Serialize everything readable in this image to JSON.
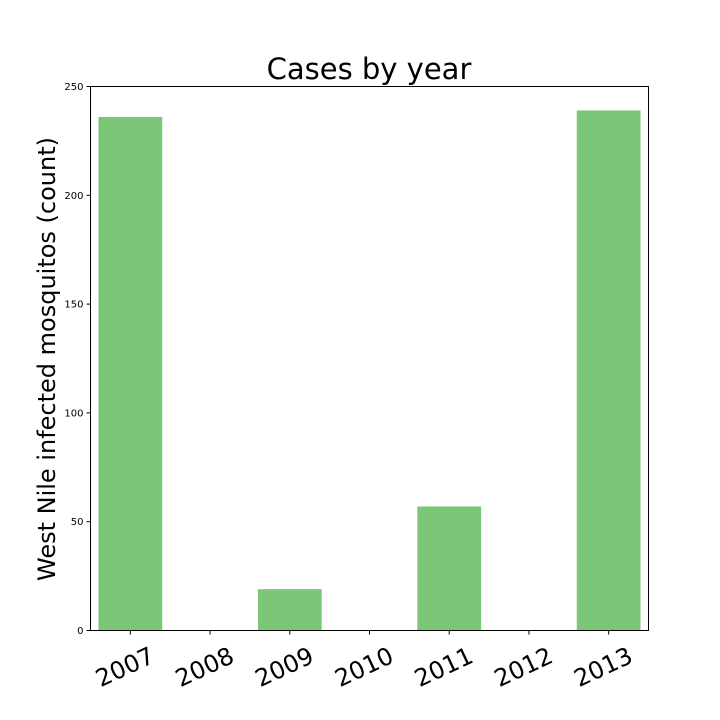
{
  "chart_data": {
    "type": "bar",
    "title": "Cases by year",
    "xlabel": "",
    "ylabel": "West Nile infected mosquitos (count)",
    "categories": [
      "2007",
      "2008",
      "2009",
      "2010",
      "2011",
      "2012",
      "2013"
    ],
    "values": [
      236,
      0,
      19,
      0,
      57,
      0,
      239
    ],
    "ylim": [
      0,
      250
    ],
    "yticks": [
      0,
      50,
      100,
      150,
      200,
      250
    ],
    "bar_color": "#7bc677",
    "grid": false,
    "legend": "none"
  }
}
